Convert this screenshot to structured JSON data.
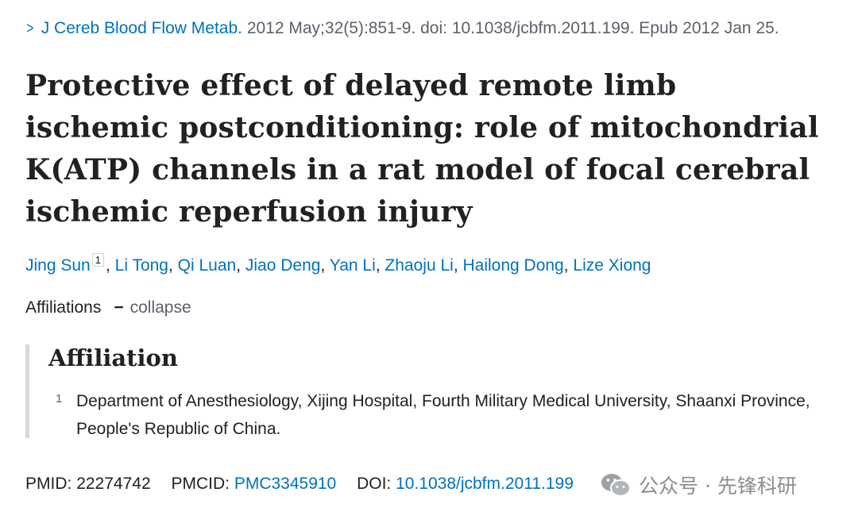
{
  "citation": {
    "journal": "J Cereb Blood Flow Metab.",
    "details": "2012 May;32(5):851-9. doi: 10.1038/jcbfm.2011.199. Epub 2012 Jan 25."
  },
  "article": {
    "title": "Protective effect of delayed remote limb ischemic postconditioning: role of mitochondrial K(ATP) channels in a rat model of focal cerebral ischemic reperfusion injury"
  },
  "authors": {
    "first": "Jing Sun",
    "first_sup": "1",
    "rest": [
      "Li Tong",
      "Qi Luan",
      "Jiao Deng",
      "Yan Li",
      "Zhaoju Li",
      "Hailong Dong",
      "Lize Xiong"
    ]
  },
  "affiliations": {
    "toggle_label": "Affiliations",
    "dash": "−",
    "collapse_label": "collapse",
    "heading": "Affiliation",
    "items": [
      {
        "num": "1",
        "text": "Department of Anesthesiology, Xijing Hospital, Fourth Military Medical University, Shaanxi Province, People's Republic of China."
      }
    ]
  },
  "identifiers": {
    "pmid_label": "PMID:",
    "pmid": "22274742",
    "pmcid_label": "PMCID:",
    "pmcid": "PMC3345910",
    "doi_label": "DOI:",
    "doi": "10.1038/jcbfm.2011.199"
  },
  "watermark": {
    "text": "公众号 · 先锋科研",
    "icon": "wechat-icon"
  },
  "colors": {
    "link": "#0071bc",
    "text": "#212121",
    "muted": "#5b616b",
    "border": "#d5d8dc"
  }
}
